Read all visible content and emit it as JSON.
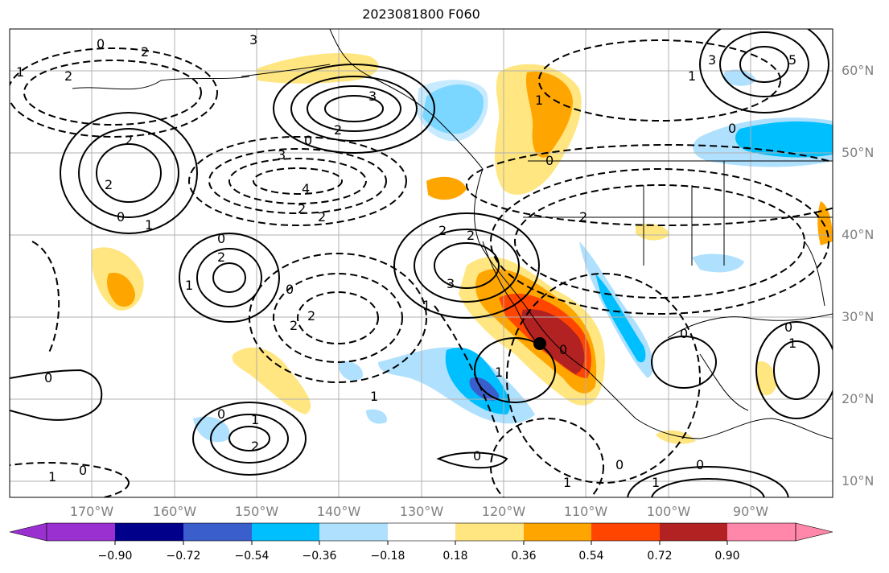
{
  "title": "2023081800 F060",
  "map": {
    "region": "Eastern Pacific / North America",
    "lat_labels": [
      "60°N",
      "50°N",
      "40°N",
      "30°N",
      "20°N",
      "10°N"
    ],
    "lon_labels": [
      "170°W",
      "160°W",
      "150°W",
      "140°W",
      "130°W",
      "120°W",
      "110°W",
      "100°W",
      "90°W"
    ],
    "contour_labels": [
      "0",
      "1",
      "2",
      "3",
      "4",
      "5"
    ],
    "marker": "storm-center",
    "gridlines": true
  },
  "colorbar": {
    "tick_labels": [
      "−0.90",
      "−0.72",
      "−0.54",
      "−0.36",
      "−0.18",
      "0.18",
      "0.36",
      "0.54",
      "0.72",
      "0.90"
    ],
    "colors": [
      "#9b30d0",
      "#00008b",
      "#3a5fcd",
      "#00bfff",
      "#afe1ff",
      "#ffffff",
      "#ffe680",
      "#ffa500",
      "#ff4500",
      "#b22222",
      "#ff88aa"
    ]
  }
}
